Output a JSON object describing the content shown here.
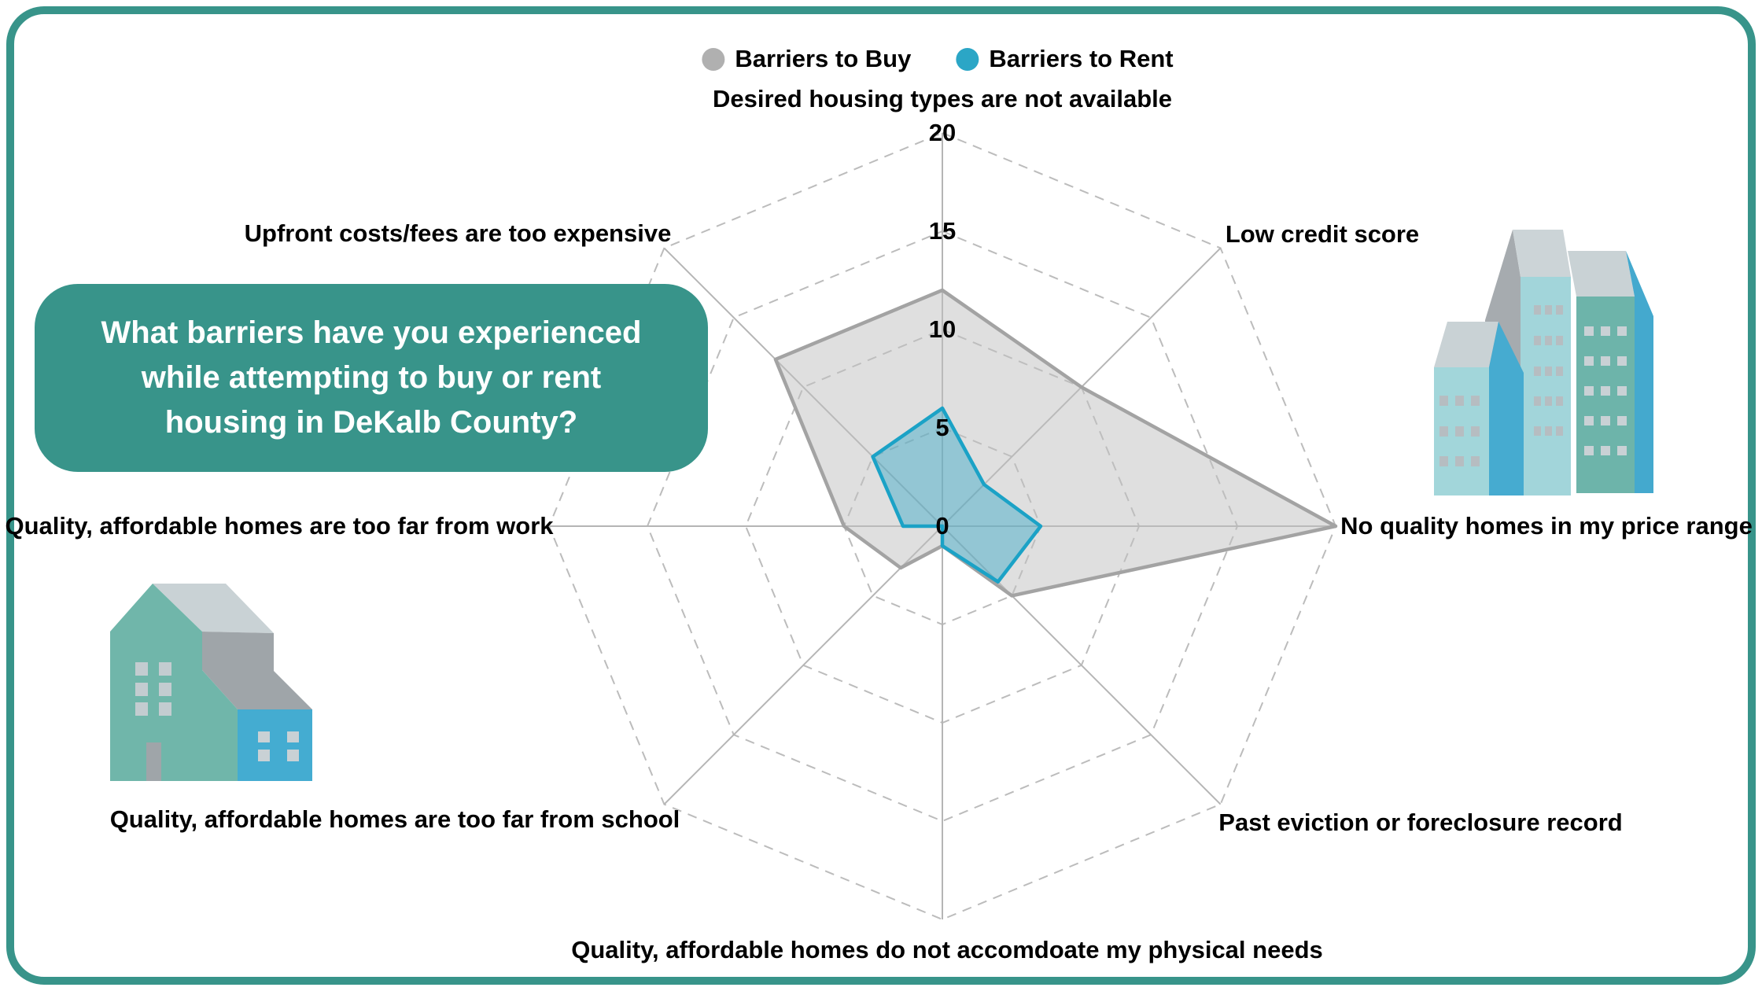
{
  "frame": {
    "border_color": "#38948a",
    "background_color": "#ffffff"
  },
  "legend": {
    "buy_label": "Barriers to Buy",
    "rent_label": "Barriers to Rent"
  },
  "question_box": {
    "bg_color": "#38948a",
    "text_color": "#ffffff",
    "lines": [
      "What barriers have you experienced",
      "while attempting to buy or rent",
      "housing in DeKalb County?"
    ]
  },
  "chart_data": {
    "type": "radar",
    "axes": [
      "Desired housing types are not available",
      "Low credit score",
      "No quality homes in my price range",
      "Past eviction or foreclosure record",
      "Quality, affordable homes do not accomdoate my physical needs",
      "Quality, affordable homes are too far from school",
      "Quality, affordable homes are too far from work",
      "Upfront costs/fees are too expensive"
    ],
    "series": [
      {
        "name": "Barriers to Buy",
        "values": [
          12,
          10,
          20,
          5,
          1,
          3,
          5,
          12
        ],
        "fill": "#bfbfbf",
        "fill_opacity": 0.5,
        "stroke": "#a3a3a3",
        "legend_color": "#b0b0b0"
      },
      {
        "name": "Barriers to Rent",
        "values": [
          6,
          3,
          5,
          4,
          1,
          0,
          2,
          5
        ],
        "fill": "#2aa5c5",
        "fill_opacity": 0.42,
        "stroke": "#1ba2c6",
        "legend_color": "#2ba6c6"
      }
    ],
    "ticks": [
      0,
      5,
      10,
      15,
      20
    ],
    "rmax": 20,
    "grid": {
      "rings_dashed": true,
      "spokes_solid": true,
      "legend_position": "top-center"
    }
  },
  "illustrations": {
    "left": "house-icon",
    "right": "apartment-buildings-icon",
    "palette": [
      "#70b6aa",
      "#a2d5da",
      "#44abd0",
      "#c9d2d5",
      "#9fa5a9",
      "#6db4aa"
    ]
  }
}
